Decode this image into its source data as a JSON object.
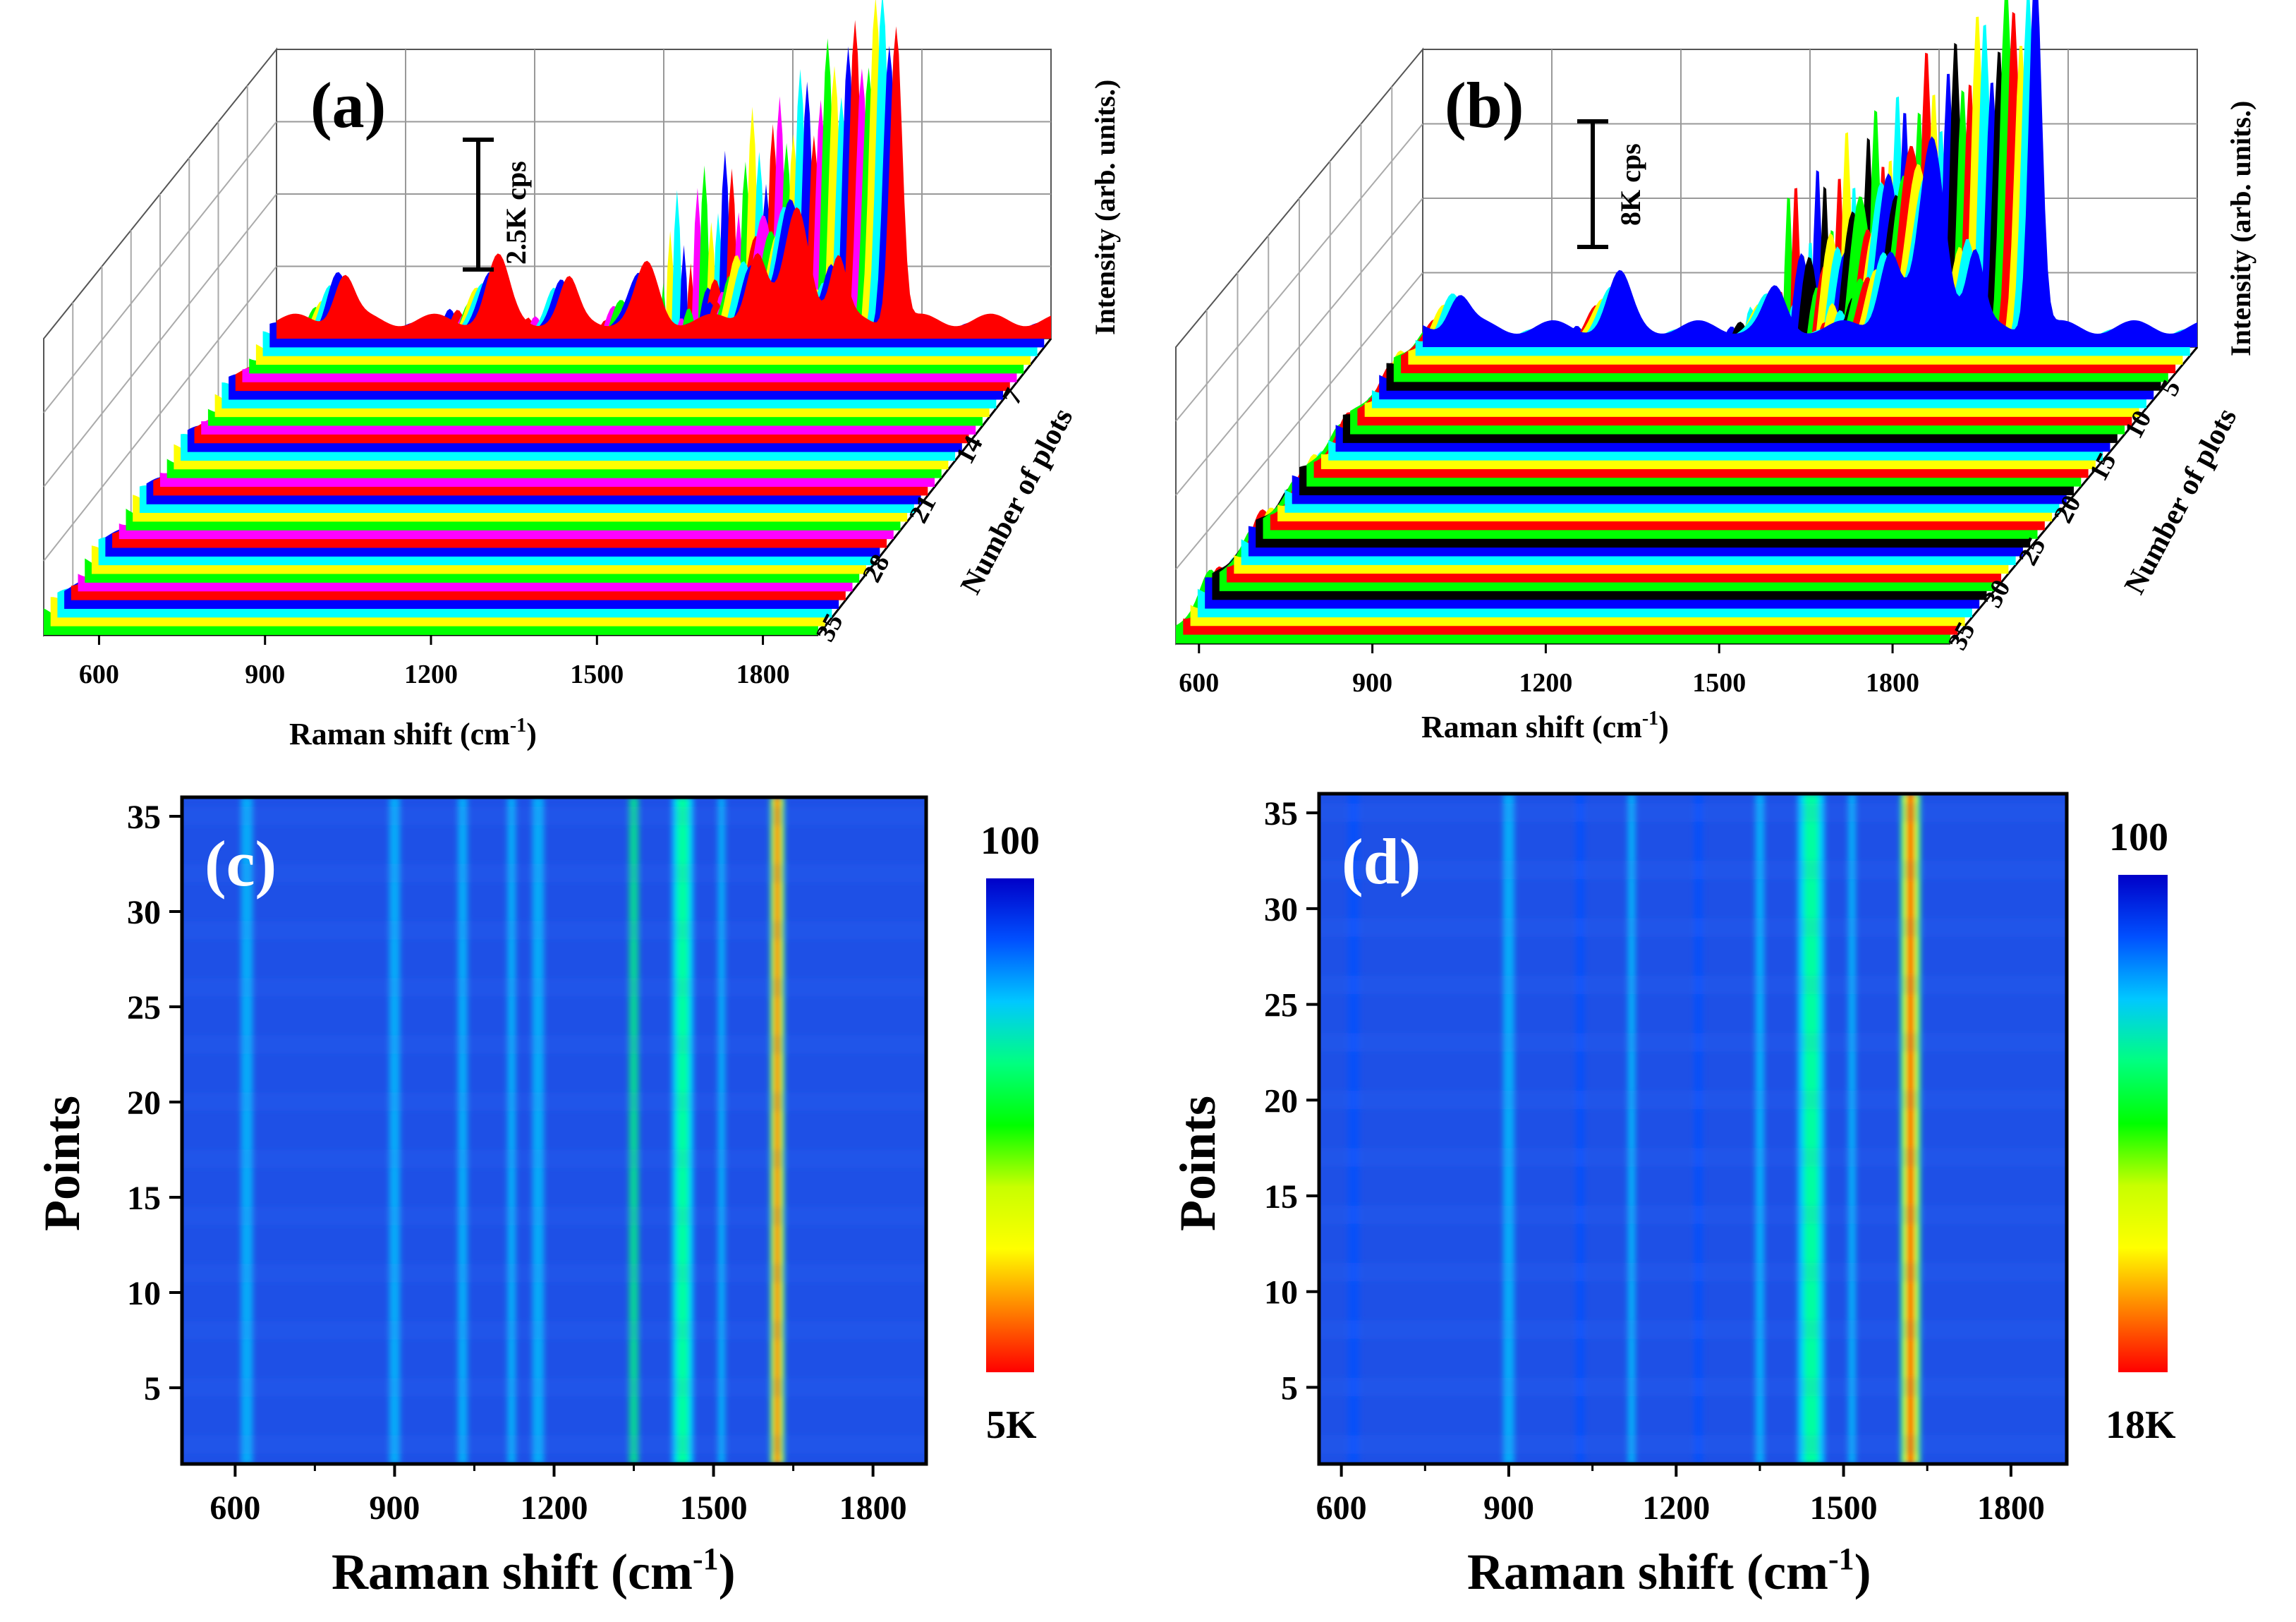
{
  "palettes": {
    "a": [
      "#ff0000",
      "#0000ff",
      "#00ffff",
      "#ffff00",
      "#00ff00",
      "#ff00ff"
    ],
    "b": [
      "#0000ff",
      "#00ffff",
      "#ffff00",
      "#ff0000",
      "#00ff00",
      "#000000"
    ],
    "colorbar": [
      "#0000c8",
      "#0050ff",
      "#00c8ff",
      "#00ff80",
      "#00ff00",
      "#c8ff00",
      "#ffff00",
      "#ff8000",
      "#ff0000"
    ]
  },
  "chart_data": [
    {
      "type": "area",
      "panel_label": "(a)",
      "xlabel": "Raman shift (cm",
      "xlabel_sup": "-1",
      "xlabel_close": ")",
      "ylabel": "Intensity (arb. units.)",
      "zlabel": "Number of plots",
      "x_ticks": [
        "600",
        "900",
        "1200",
        "1500",
        "1800"
      ],
      "x_tick_values": [
        600,
        900,
        1200,
        1500,
        1800
      ],
      "z_ticks": [
        "7",
        "14",
        "21",
        "28",
        "35"
      ],
      "z_tick_values": [
        7,
        14,
        21,
        28,
        35
      ],
      "xlim": [
        500,
        1900
      ],
      "n_spectra": 35,
      "scale_bar_label": "2.5K cps",
      "peaks": [
        {
          "center": 622,
          "height": 0.15,
          "width": 18
        },
        {
          "center": 900,
          "height": 0.18,
          "width": 20
        },
        {
          "center": 1028,
          "height": 0.14,
          "width": 16
        },
        {
          "center": 1170,
          "height": 0.16,
          "width": 20
        },
        {
          "center": 1368,
          "height": 0.22,
          "width": 18
        },
        {
          "center": 1442,
          "height": 0.4,
          "width": 22
        },
        {
          "center": 1515,
          "height": 0.18,
          "width": 15
        },
        {
          "center": 1620,
          "height": 1.0,
          "width": 11
        }
      ]
    },
    {
      "type": "area",
      "panel_label": "(b)",
      "xlabel": "Raman shift (cm",
      "xlabel_sup": "-1",
      "xlabel_close": ")",
      "ylabel": "Intensity (arb. units.)",
      "zlabel": "Number of plots",
      "x_ticks": [
        "600",
        "900",
        "1200",
        "1500",
        "1800"
      ],
      "x_tick_values": [
        600,
        900,
        1200,
        1500,
        1800
      ],
      "z_ticks": [
        "5",
        "10",
        "15",
        "20",
        "25",
        "30",
        "35"
      ],
      "z_tick_values": [
        5,
        10,
        15,
        20,
        25,
        30,
        35
      ],
      "xlim": [
        560,
        1900
      ],
      "n_spectra": 35,
      "scale_bar_label": "8K cps",
      "peaks": [
        {
          "center": 622,
          "height": 0.1,
          "width": 18
        },
        {
          "center": 900,
          "height": 0.14,
          "width": 20
        },
        {
          "center": 1170,
          "height": 0.12,
          "width": 18
        },
        {
          "center": 1368,
          "height": 0.22,
          "width": 18
        },
        {
          "center": 1442,
          "height": 0.55,
          "width": 22
        },
        {
          "center": 1515,
          "height": 0.25,
          "width": 15
        },
        {
          "center": 1620,
          "height": 1.0,
          "width": 11
        }
      ]
    },
    {
      "type": "heatmap",
      "panel_label": "(c)",
      "xlabel": "Raman shift (cm",
      "xlabel_sup": "-1",
      "xlabel_close": ")",
      "ylabel": "Points",
      "x_ticks": [
        "600",
        "900",
        "1200",
        "1500",
        "1800"
      ],
      "x_tick_values": [
        600,
        900,
        1200,
        1500,
        1800
      ],
      "y_ticks": [
        "5",
        "10",
        "15",
        "20",
        "25",
        "30",
        "35"
      ],
      "y_tick_values": [
        5,
        10,
        15,
        20,
        25,
        30,
        35
      ],
      "xlim": [
        500,
        1900
      ],
      "ylim": [
        1,
        36
      ],
      "colorbar_top": "100",
      "colorbar_bottom": "5K",
      "bands": [
        {
          "center": 622,
          "width": 22,
          "level": 0.1
        },
        {
          "center": 900,
          "width": 20,
          "level": 0.12
        },
        {
          "center": 1028,
          "width": 18,
          "level": 0.1
        },
        {
          "center": 1120,
          "width": 16,
          "level": 0.09
        },
        {
          "center": 1170,
          "width": 22,
          "level": 0.13
        },
        {
          "center": 1350,
          "width": 18,
          "level": 0.16
        },
        {
          "center": 1442,
          "width": 20,
          "level": 0.4
        },
        {
          "center": 1515,
          "width": 14,
          "level": 0.12
        },
        {
          "center": 1620,
          "width": 12,
          "level": 1.0
        }
      ]
    },
    {
      "type": "heatmap",
      "panel_label": "(d)",
      "xlabel": "Raman shift (cm",
      "xlabel_sup": "-1",
      "xlabel_close": ")",
      "ylabel": "Points",
      "x_ticks": [
        "600",
        "900",
        "1200",
        "1500",
        "1800"
      ],
      "x_tick_values": [
        600,
        900,
        1200,
        1500,
        1800
      ],
      "y_ticks": [
        "5",
        "10",
        "15",
        "20",
        "25",
        "30",
        "35"
      ],
      "y_tick_values": [
        5,
        10,
        15,
        20,
        25,
        30,
        35
      ],
      "xlim": [
        560,
        1900
      ],
      "ylim": [
        1,
        36
      ],
      "colorbar_top": "100",
      "colorbar_bottom": "18K",
      "bands": [
        {
          "center": 622,
          "width": 20,
          "level": 0.08
        },
        {
          "center": 900,
          "width": 20,
          "level": 0.12
        },
        {
          "center": 1028,
          "width": 16,
          "level": 0.08
        },
        {
          "center": 1120,
          "width": 14,
          "level": 0.1
        },
        {
          "center": 1240,
          "width": 16,
          "level": 0.07
        },
        {
          "center": 1350,
          "width": 16,
          "level": 0.1
        },
        {
          "center": 1442,
          "width": 24,
          "level": 0.45
        },
        {
          "center": 1515,
          "width": 14,
          "level": 0.12
        },
        {
          "center": 1620,
          "width": 16,
          "level": 1.0
        }
      ]
    }
  ]
}
